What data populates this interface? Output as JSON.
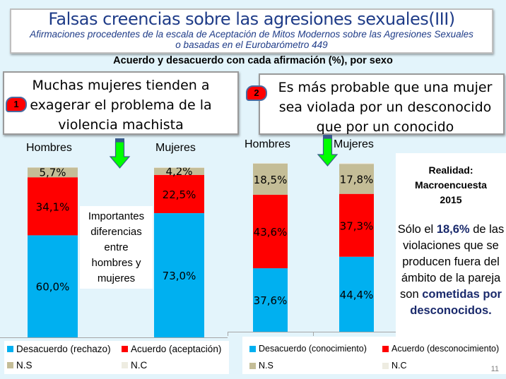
{
  "header": {
    "title": "Falsas creencias sobre las agresiones sexuales(III)",
    "subtitle_line1": "Afirmaciones procedentes de la escala de Aceptación de Mitos Modernos sobre las Agresiones Sexuales",
    "subtitle_line2": "o basadas en el Eurobarómetro 449",
    "chart_heading": "Acuerdo y desacuerdo con cada afirmación (%), por sexo"
  },
  "statements": [
    {
      "badge": "1",
      "lines": [
        "Muchas mujeres tienden a",
        "exagerar el problema de la",
        "violencia machista"
      ]
    },
    {
      "badge": "2",
      "lines": [
        "Es más probable que una mujer",
        "sea violada por un desconocido",
        "que por un conocido"
      ]
    }
  ],
  "note": {
    "lines": [
      "Importantes",
      "diferencias",
      "entre",
      "hombres y",
      "mujeres"
    ]
  },
  "reality": {
    "title_lines": [
      "Realidad:",
      "Macroencuesta",
      "2015"
    ],
    "body_prefix": "Sólo el ",
    "body_highlight": "18,6%",
    "body_mid": " de las violaciones que se producen fuera del ámbito de la pareja son ",
    "body_emph": "cometidas por desconocidos."
  },
  "colors": {
    "desacuerdo": "#00b0f0",
    "acuerdo": "#ff0000",
    "ns": "#c4bd97",
    "nc": "#eeece1",
    "arrow_fill": "#00ff00",
    "arrow_stroke": "#3a5a8c"
  },
  "legends": [
    {
      "items": [
        "Desacuerdo (rechazo)",
        "Acuerdo (aceptación)",
        "N.S",
        "N.C"
      ]
    },
    {
      "items": [
        "Desacuerdo (conocimiento)",
        "Acuerdo (desconocimiento)",
        "N.S",
        "N.C"
      ]
    }
  ],
  "page_number": "11",
  "chart_data": [
    {
      "type": "bar",
      "stacked": true,
      "title": "Muchas mujeres tienden a exagerar el problema de la violencia machista",
      "categories": [
        "Hombres",
        "Mujeres"
      ],
      "series": [
        {
          "name": "Desacuerdo (rechazo)",
          "values": [
            60.0,
            73.0
          ],
          "labels": [
            "60,0%",
            "73,0%"
          ]
        },
        {
          "name": "Acuerdo (aceptación)",
          "values": [
            34.1,
            22.5
          ],
          "labels": [
            "34,1%",
            "22,5%"
          ]
        },
        {
          "name": "N.S",
          "values": [
            5.7,
            4.2
          ],
          "labels": [
            "5,7%",
            "4,2%"
          ]
        },
        {
          "name": "N.C",
          "values": [
            0.2,
            0.3
          ],
          "labels": [
            "",
            ""
          ]
        }
      ],
      "ylim": [
        0,
        100
      ],
      "legend": "bottom"
    },
    {
      "type": "bar",
      "stacked": true,
      "title": "Es más probable que una mujer sea violada por un desconocido que por un conocido",
      "categories": [
        "Hombres",
        "Mujeres"
      ],
      "series": [
        {
          "name": "Desacuerdo (conocimiento)",
          "values": [
            37.6,
            44.4
          ],
          "labels": [
            "37,6%",
            "44,4%"
          ]
        },
        {
          "name": "Acuerdo (desconocimiento)",
          "values": [
            43.6,
            37.3
          ],
          "labels": [
            "43,6%",
            "37,3%"
          ]
        },
        {
          "name": "N.S",
          "values": [
            18.5,
            17.8
          ],
          "labels": [
            "18,5%",
            "17,8%"
          ]
        },
        {
          "name": "N.C",
          "values": [
            0.3,
            0.5
          ],
          "labels": [
            "",
            ""
          ]
        }
      ],
      "ylim": [
        0,
        100
      ],
      "legend": "bottom"
    }
  ]
}
